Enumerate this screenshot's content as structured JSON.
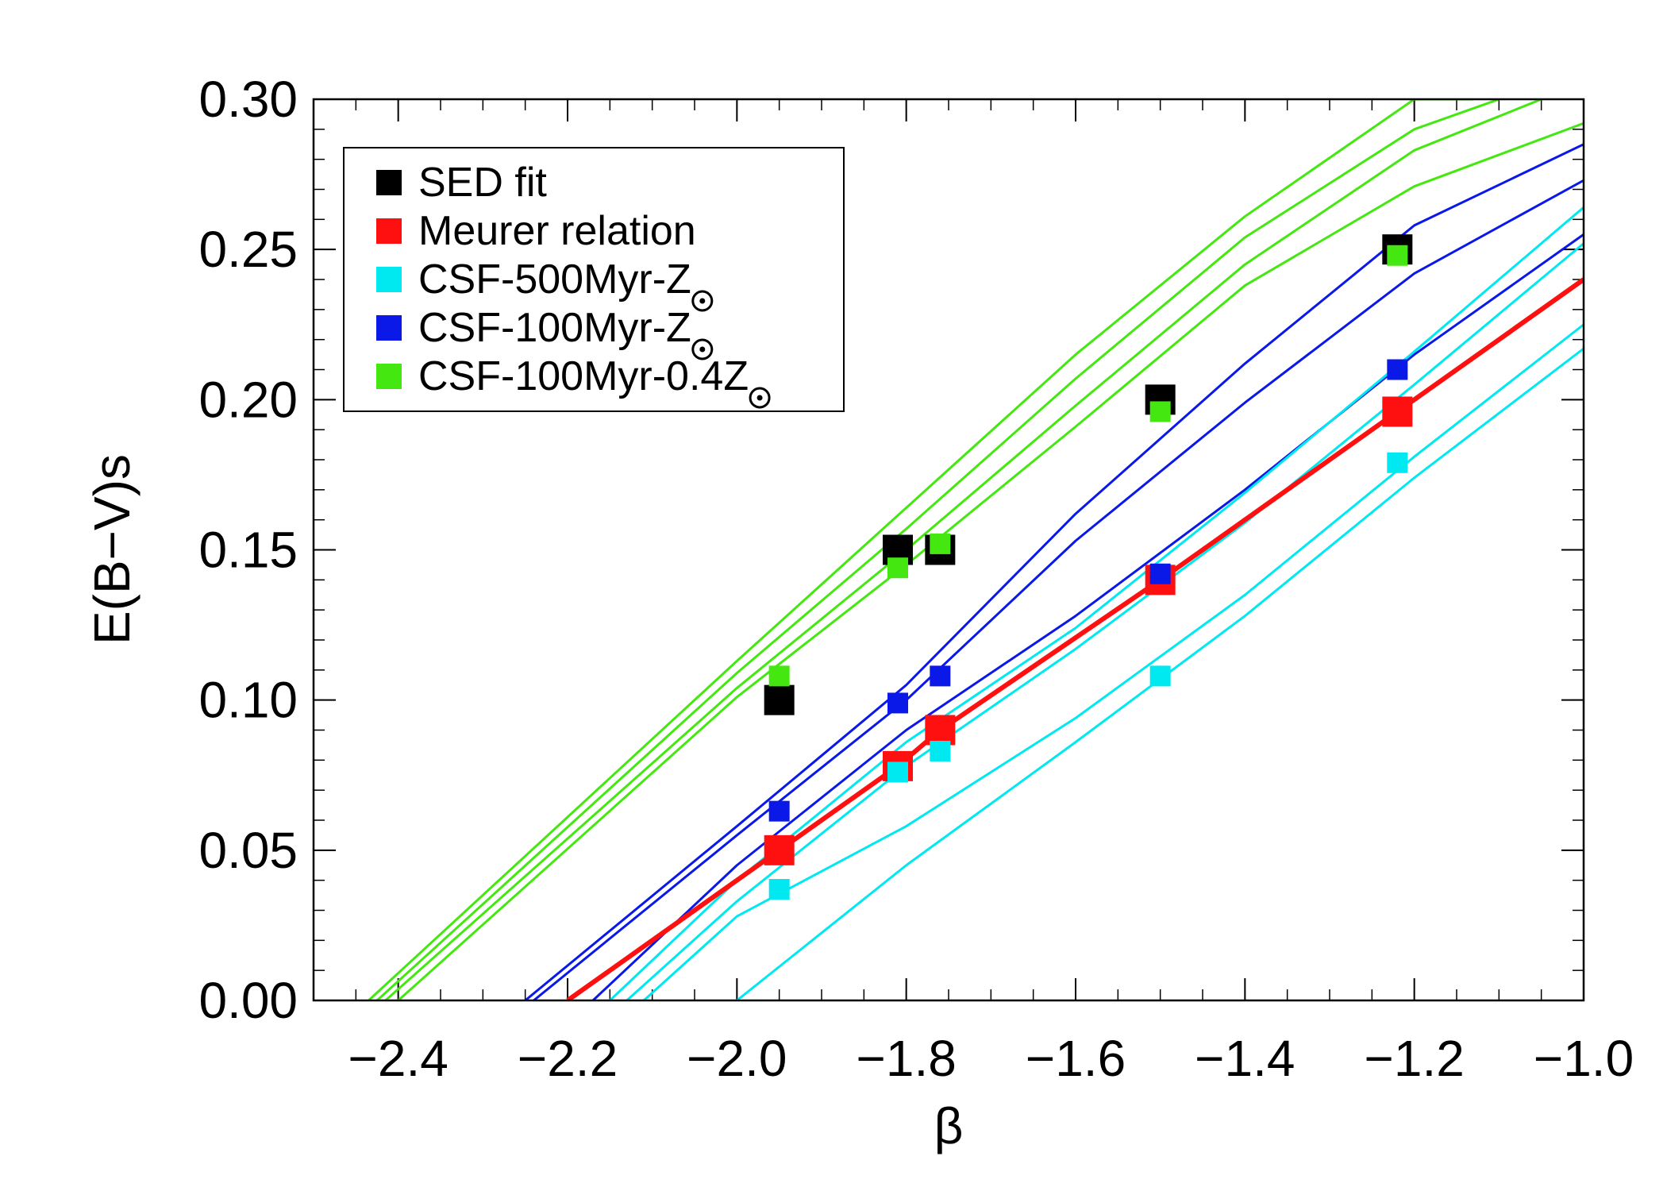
{
  "chart_data": {
    "type": "scatter",
    "xlabel": "β",
    "ylabel": "E(B−V)s",
    "xlim": [
      -2.5,
      -1.0
    ],
    "ylim": [
      0.0,
      0.3
    ],
    "x_ticks": [
      -2.4,
      -2.2,
      -2.0,
      -1.8,
      -1.6,
      -1.4,
      -1.2,
      -1.0
    ],
    "x_tick_labels": [
      "−2.4",
      "−2.2",
      "−2.0",
      "−1.8",
      "−1.6",
      "−1.4",
      "−1.2",
      "−1.0"
    ],
    "y_ticks": [
      0.0,
      0.05,
      0.1,
      0.15,
      0.2,
      0.25,
      0.3
    ],
    "y_tick_labels": [
      "0.00",
      "0.05",
      "0.10",
      "0.15",
      "0.20",
      "0.25",
      "0.30"
    ],
    "legend_position": "top-left",
    "legend": [
      {
        "text": "SED fit",
        "sub": "",
        "sun": false,
        "color": "#000000"
      },
      {
        "text": "Meurer relation",
        "sub": "",
        "sun": false,
        "color": "#ff1010"
      },
      {
        "text": "CSF-500Myr-Z",
        "sub": "⊙",
        "sun": true,
        "color": "#00e8f0"
      },
      {
        "text": "CSF-100Myr-Z",
        "sub": "⊙",
        "sun": true,
        "color": "#0a18e8"
      },
      {
        "text": "CSF-100Myr-0.4Z",
        "sub": "⊙",
        "sun": true,
        "color": "#44e810"
      }
    ],
    "series": [
      {
        "name": "SED fit",
        "color": "#000000",
        "style": "markers",
        "marker_size": "large",
        "x": [
          -1.95,
          -1.81,
          -1.76,
          -1.5,
          -1.22
        ],
        "y": [
          0.1,
          0.15,
          0.15,
          0.2,
          0.25
        ]
      },
      {
        "name": "Meurer relation",
        "color": "#ff1010",
        "style": "line+markers",
        "line_width": "thick",
        "marker_size": "large",
        "x": [
          -2.2,
          -1.95,
          -1.81,
          -1.76,
          -1.5,
          -1.22,
          -1.0
        ],
        "y": [
          0.0,
          0.05,
          0.078,
          0.09,
          0.14,
          0.196,
          0.24
        ],
        "marker_x": [
          -1.95,
          -1.81,
          -1.76,
          -1.5,
          -1.22
        ],
        "marker_y": [
          0.05,
          0.078,
          0.09,
          0.14,
          0.196
        ]
      },
      {
        "name": "CSF-500Myr-Z☉ points",
        "color": "#00e8f0",
        "style": "markers",
        "marker_size": "small",
        "x": [
          -1.95,
          -1.81,
          -1.76,
          -1.5,
          -1.22
        ],
        "y": [
          0.037,
          0.076,
          0.083,
          0.108,
          0.179
        ]
      },
      {
        "name": "CSF-100Myr-Z☉ points",
        "color": "#0a18e8",
        "style": "markers",
        "marker_size": "small",
        "x": [
          -1.95,
          -1.81,
          -1.76,
          -1.5,
          -1.22
        ],
        "y": [
          0.063,
          0.099,
          0.108,
          0.142,
          0.21
        ]
      },
      {
        "name": "CSF-100Myr-0.4Z☉ points",
        "color": "#44e810",
        "style": "markers",
        "marker_size": "small",
        "x": [
          -1.95,
          -1.81,
          -1.76,
          -1.5,
          -1.22
        ],
        "y": [
          0.108,
          0.144,
          0.152,
          0.196,
          0.248
        ]
      }
    ],
    "model_lines": [
      {
        "name": "CSF-100Myr-0.4Z☉ line 1",
        "color": "#44e810",
        "x": [
          -2.435,
          -2.0,
          -1.8,
          -1.6,
          -1.4,
          -1.2,
          -1.13
        ],
        "y": [
          0.0,
          0.113,
          0.164,
          0.215,
          0.261,
          0.3,
          0.3
        ]
      },
      {
        "name": "CSF-100Myr-0.4Z☉ line 2",
        "color": "#44e810",
        "x": [
          -2.425,
          -2.0,
          -1.8,
          -1.6,
          -1.4,
          -1.2,
          -1.1
        ],
        "y": [
          0.0,
          0.109,
          0.157,
          0.207,
          0.254,
          0.29,
          0.3
        ]
      },
      {
        "name": "CSF-100Myr-0.4Z☉ line 3",
        "color": "#44e810",
        "x": [
          -2.415,
          -2.0,
          -1.8,
          -1.6,
          -1.4,
          -1.2,
          -1.05
        ],
        "y": [
          0.0,
          0.104,
          0.15,
          0.198,
          0.245,
          0.283,
          0.3
        ]
      },
      {
        "name": "CSF-100Myr-0.4Z☉ line 4",
        "color": "#44e810",
        "x": [
          -2.4,
          -2.0,
          -1.8,
          -1.6,
          -1.4,
          -1.2,
          -1.0
        ],
        "y": [
          0.0,
          0.101,
          0.145,
          0.191,
          0.238,
          0.271,
          0.292
        ]
      },
      {
        "name": "CSF-100Myr-Z☉ line 1",
        "color": "#0a18e8",
        "x": [
          -2.25,
          -2.0,
          -1.8,
          -1.6,
          -1.4,
          -1.2,
          -1.0
        ],
        "y": [
          0.0,
          0.058,
          0.105,
          0.162,
          0.212,
          0.258,
          0.285
        ]
      },
      {
        "name": "CSF-100Myr-Z☉ line 2",
        "color": "#0a18e8",
        "x": [
          -2.24,
          -2.0,
          -1.8,
          -1.6,
          -1.4,
          -1.2,
          -1.0
        ],
        "y": [
          0.0,
          0.055,
          0.1,
          0.153,
          0.199,
          0.242,
          0.273
        ]
      },
      {
        "name": "CSF-100Myr-Z☉ line 3",
        "color": "#0a18e8",
        "x": [
          -2.17,
          -2.0,
          -1.8,
          -1.6,
          -1.4,
          -1.2,
          -1.0
        ],
        "y": [
          0.0,
          0.045,
          0.09,
          0.128,
          0.17,
          0.215,
          0.255
        ]
      },
      {
        "name": "CSF-500Myr-Z☉ line 1",
        "color": "#00e8f0",
        "x": [
          -2.15,
          -2.0,
          -1.8,
          -1.6,
          -1.4,
          -1.2,
          -1.0
        ],
        "y": [
          0.0,
          0.04,
          0.086,
          0.124,
          0.169,
          0.216,
          0.264
        ]
      },
      {
        "name": "CSF-500Myr-Z☉ line 2",
        "color": "#00e8f0",
        "x": [
          -2.13,
          -2.0,
          -1.8,
          -1.6,
          -1.4,
          -1.2,
          -1.0
        ],
        "y": [
          0.0,
          0.033,
          0.078,
          0.117,
          0.159,
          0.205,
          0.252
        ]
      },
      {
        "name": "CSF-500Myr-Z☉ line 3",
        "color": "#00e8f0",
        "x": [
          -2.11,
          -2.0,
          -1.8,
          -1.6,
          -1.4,
          -1.2,
          -1.0
        ],
        "y": [
          0.0,
          0.028,
          0.058,
          0.094,
          0.135,
          0.181,
          0.225
        ]
      },
      {
        "name": "CSF-500Myr-Z☉ line 4",
        "color": "#00e8f0",
        "x": [
          -2.0,
          -1.8,
          -1.6,
          -1.4,
          -1.2,
          -1.0
        ],
        "y": [
          0.0,
          0.045,
          0.086,
          0.128,
          0.174,
          0.217
        ]
      }
    ]
  }
}
